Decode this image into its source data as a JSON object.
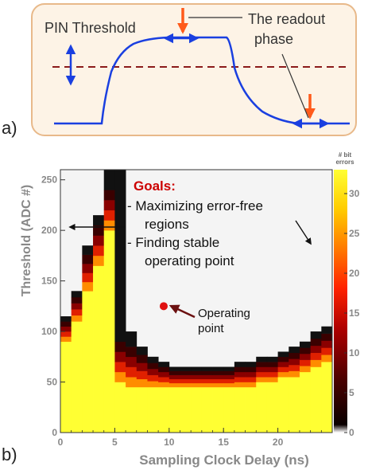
{
  "panel_a": {
    "panel_label": "a)",
    "threshold_label": "PIN Threshold",
    "readout_label_line1": "The readout",
    "readout_label_line2": "phase"
  },
  "panel_b": {
    "panel_label": "b)",
    "goals_title": "Goals:",
    "goals_lines": [
      "- Maximizing error-free",
      "  regions",
      "- Finding stable",
      "  operating point"
    ],
    "operating_point_label_line1": "Operating",
    "operating_point_label_line2": "point",
    "colorbar_title_line1": "# bit",
    "colorbar_title_line2": "errors"
  },
  "colors": {
    "pulse": "#1a3fe0",
    "threshold_line": "#8b1a1a",
    "orange_arrow": "#ff5a1a",
    "panel_a_bg": "#fdf3e6",
    "panel_a_border": "#e8b98a",
    "goals": "#cc0000",
    "operating_point": "#e01010",
    "error_free": "#f4f4f4",
    "many_errors": "#ffff33"
  },
  "chart_data": {
    "type": "heatmap",
    "xlabel": "Sampling Clock Delay (ns)",
    "ylabel": "Threshold (ADC #)",
    "xlim": [
      0,
      25
    ],
    "ylim": [
      0,
      260
    ],
    "xticks": [
      0,
      5,
      10,
      15,
      20
    ],
    "yticks": [
      0,
      50,
      100,
      150,
      200,
      250
    ],
    "colorbar_range": [
      0,
      33
    ],
    "colorbar_ticks": [
      0,
      5,
      10,
      15,
      20,
      25,
      30
    ],
    "bin_width_ns": 1,
    "columns": [
      {
        "x": 0,
        "lower_edge": 90,
        "upper_edge": 115
      },
      {
        "x": 1,
        "lower_edge": 110,
        "upper_edge": 140
      },
      {
        "x": 2,
        "lower_edge": 140,
        "upper_edge": 185
      },
      {
        "x": 3,
        "lower_edge": 165,
        "upper_edge": 215
      },
      {
        "x": 4,
        "lower_edge": 200,
        "upper_edge": 260
      },
      {
        "x": 5,
        "lower_edge": 50,
        "upper_edge": 260
      },
      {
        "x": 6,
        "lower_edge": 45,
        "upper_edge": 100
      },
      {
        "x": 7,
        "lower_edge": 45,
        "upper_edge": 85
      },
      {
        "x": 8,
        "lower_edge": 45,
        "upper_edge": 75
      },
      {
        "x": 9,
        "lower_edge": 45,
        "upper_edge": 70
      },
      {
        "x": 10,
        "lower_edge": 45,
        "upper_edge": 65
      },
      {
        "x": 11,
        "lower_edge": 45,
        "upper_edge": 65
      },
      {
        "x": 12,
        "lower_edge": 45,
        "upper_edge": 65
      },
      {
        "x": 13,
        "lower_edge": 45,
        "upper_edge": 65
      },
      {
        "x": 14,
        "lower_edge": 45,
        "upper_edge": 65
      },
      {
        "x": 15,
        "lower_edge": 45,
        "upper_edge": 65
      },
      {
        "x": 16,
        "lower_edge": 45,
        "upper_edge": 70
      },
      {
        "x": 17,
        "lower_edge": 45,
        "upper_edge": 70
      },
      {
        "x": 18,
        "lower_edge": 50,
        "upper_edge": 75
      },
      {
        "x": 19,
        "lower_edge": 50,
        "upper_edge": 75
      },
      {
        "x": 20,
        "lower_edge": 55,
        "upper_edge": 80
      },
      {
        "x": 21,
        "lower_edge": 55,
        "upper_edge": 85
      },
      {
        "x": 22,
        "lower_edge": 60,
        "upper_edge": 90
      },
      {
        "x": 23,
        "lower_edge": 65,
        "upper_edge": 100
      },
      {
        "x": 24,
        "lower_edge": 70,
        "upper_edge": 105
      }
    ],
    "operating_point": {
      "x": 9.5,
      "y": 125
    }
  }
}
